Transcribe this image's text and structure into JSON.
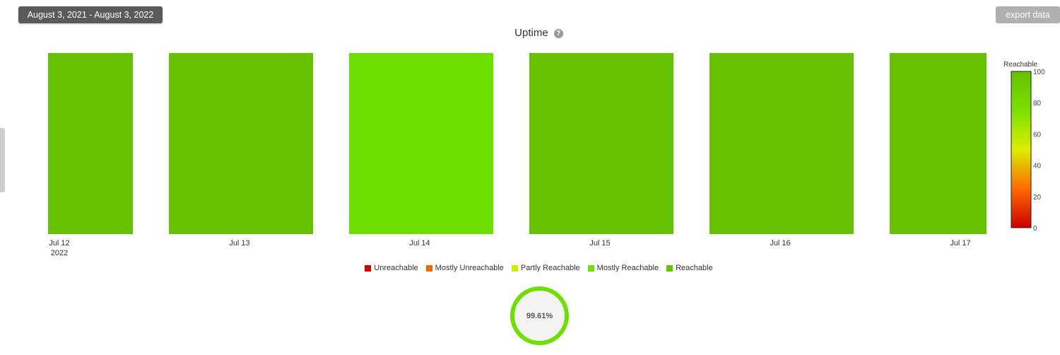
{
  "header": {
    "date_range": "August 3, 2021 - August 3, 2022",
    "export_label": "export data"
  },
  "chart_title": "Uptime",
  "help_icon": "?",
  "chart_data": {
    "type": "heatmap",
    "title": "Uptime",
    "x_tick_labels": [
      "Jul 12",
      "Jul 13",
      "Jul 14",
      "Jul 15",
      "Jul 16",
      "Jul 17"
    ],
    "x_year_label": "2022",
    "cells": [
      {
        "date": "Jul 12",
        "value": 100
      },
      {
        "date": "Jul 13",
        "value": 100
      },
      {
        "date": "Jul 14",
        "value": 97.7
      },
      {
        "date": "Jul 15",
        "value": 100
      },
      {
        "date": "Jul 16",
        "value": 100
      },
      {
        "date": "Jul 17",
        "value": 100
      }
    ],
    "color_axis": {
      "title": "Reachable",
      "min": 0,
      "max": 100,
      "ticks": [
        100,
        80,
        60,
        40,
        20,
        0
      ],
      "stops": [
        "#cc0000",
        "#ff6a00",
        "#ddee00",
        "#7be000",
        "#66c200"
      ]
    },
    "legend": [
      {
        "label": "Unreachable",
        "color": "#cc0000"
      },
      {
        "label": "Mostly Unreachable",
        "color": "#ee6a00"
      },
      {
        "label": "Partly Reachable",
        "color": "#ccee00"
      },
      {
        "label": "Mostly Reachable",
        "color": "#6ee000"
      },
      {
        "label": "Reachable",
        "color": "#66c200"
      }
    ]
  },
  "summary": {
    "uptime_percent": "99.61%",
    "ring_color": "#6ee000"
  }
}
